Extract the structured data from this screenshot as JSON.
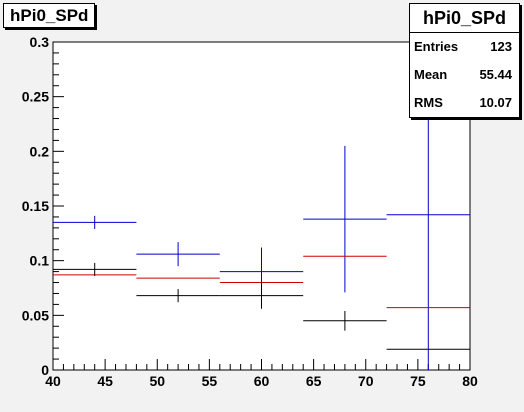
{
  "histogram_title": "hPi0_SPd",
  "stats": {
    "title": "hPi0_SPd",
    "rows": [
      {
        "label": "Entries",
        "value": "123"
      },
      {
        "label": "Mean",
        "value": "55.44"
      },
      {
        "label": "RMS",
        "value": "10.07"
      }
    ]
  },
  "chart_data": {
    "type": "scatter",
    "title": "hPi0_SPd",
    "xlabel": "",
    "ylabel": "",
    "xlim": [
      40,
      80
    ],
    "ylim": [
      0,
      0.3
    ],
    "grid": false,
    "legend": "none",
    "x_ticks": [
      "40",
      "45",
      "50",
      "55",
      "60",
      "65",
      "70",
      "75",
      "80"
    ],
    "y_ticks": [
      "0",
      "0.05",
      "0.1",
      "0.15",
      "0.2",
      "0.25",
      "0.3"
    ],
    "bin_edges": [
      40,
      48,
      56,
      64,
      72,
      80
    ],
    "bin_centers": [
      44,
      52,
      60,
      68,
      76
    ],
    "series": [
      {
        "color": "#0000cc",
        "values": [
          0.135,
          0.106,
          0.09,
          0.138,
          0.142
        ],
        "errors": [
          0.006,
          0.011,
          0.022,
          0.067,
          0.22
        ]
      },
      {
        "color": "#cc0000",
        "values": [
          0.087,
          0.084,
          0.08,
          0.104,
          0.057
        ],
        "errors": [
          0,
          0,
          0,
          0,
          0
        ]
      },
      {
        "color": "#000000",
        "values": [
          0.092,
          0.068,
          0.068,
          0.045,
          0.019
        ],
        "errors": [
          0.006,
          0.006,
          0.012,
          0.009,
          0
        ]
      }
    ]
  }
}
